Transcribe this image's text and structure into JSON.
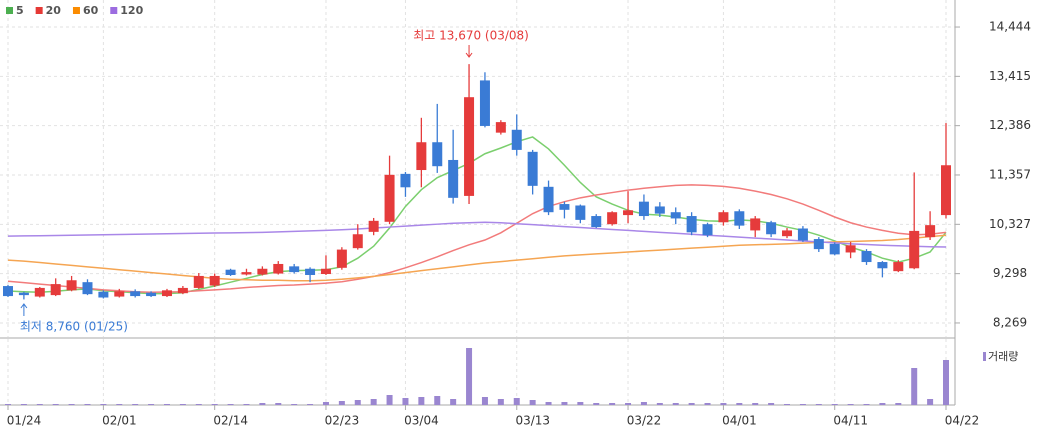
{
  "chart_data": [
    {
      "type": "candlestick",
      "categories": [
        "01/24",
        null,
        null,
        null,
        null,
        null,
        "02/01",
        null,
        null,
        null,
        null,
        null,
        null,
        "02/14",
        null,
        null,
        null,
        null,
        null,
        null,
        "02/23",
        null,
        null,
        null,
        null,
        "03/04",
        null,
        null,
        null,
        null,
        null,
        null,
        "03/13",
        null,
        null,
        null,
        null,
        null,
        null,
        "03/22",
        null,
        null,
        null,
        null,
        null,
        "04/01",
        null,
        null,
        null,
        null,
        null,
        null,
        "04/11",
        null,
        null,
        null,
        null,
        null,
        null,
        "04/22"
      ],
      "open": [
        9039,
        8900,
        8820,
        8850,
        8950,
        9120,
        8920,
        8820,
        8930,
        8900,
        8830,
        8890,
        9000,
        9050,
        9380,
        9280,
        9280,
        9300,
        9450,
        9400,
        9290,
        9420,
        9830,
        10170,
        10380,
        11380,
        11460,
        12040,
        11670,
        10920,
        13330,
        12240,
        12300,
        11840,
        11110,
        10750,
        10720,
        10500,
        10330,
        10520,
        10800,
        10700,
        10580,
        10500,
        10330,
        10370,
        10600,
        10200,
        10370,
        10080,
        10240,
        10020,
        9920,
        9740,
        9770,
        9540,
        9350,
        9410,
        10060,
        10520
      ],
      "high": [
        9060,
        8920,
        9020,
        9200,
        9250,
        9180,
        8950,
        8980,
        8970,
        8930,
        8980,
        9040,
        9310,
        9300,
        9400,
        9400,
        9450,
        9560,
        9500,
        9430,
        9680,
        9850,
        10330,
        10460,
        11760,
        11420,
        12550,
        12840,
        12300,
        13670,
        13500,
        12500,
        12620,
        11880,
        11240,
        10800,
        10740,
        10540,
        10600,
        11020,
        10950,
        10790,
        10680,
        10580,
        10360,
        10620,
        10640,
        10500,
        10400,
        10250,
        10290,
        10060,
        9950,
        9960,
        9810,
        9560,
        9580,
        11410,
        10600,
        12440
      ],
      "low": [
        8810,
        8760,
        8800,
        8830,
        8930,
        8850,
        8780,
        8800,
        8800,
        8810,
        8810,
        8870,
        8980,
        9020,
        9250,
        9260,
        9260,
        9280,
        9300,
        9120,
        9270,
        9380,
        9800,
        10100,
        10330,
        10900,
        11100,
        11400,
        10760,
        10750,
        12350,
        12200,
        11760,
        10950,
        10520,
        10450,
        10350,
        10250,
        10300,
        10350,
        10420,
        10480,
        10330,
        10100,
        10060,
        10300,
        10230,
        10060,
        10060,
        10040,
        9960,
        9750,
        9680,
        9620,
        9480,
        9220,
        9330,
        9390,
        10000,
        10450
      ],
      "close": [
        8830,
        8850,
        9000,
        9080,
        9160,
        8870,
        8800,
        8930,
        8830,
        8830,
        8950,
        9000,
        9250,
        9250,
        9270,
        9330,
        9400,
        9500,
        9330,
        9270,
        9400,
        9800,
        10120,
        10400,
        11360,
        11100,
        12040,
        11540,
        10880,
        12980,
        12380,
        12460,
        11880,
        11130,
        10580,
        10630,
        10420,
        10270,
        10580,
        10620,
        10500,
        10550,
        10450,
        10160,
        10100,
        10580,
        10300,
        10450,
        10120,
        10200,
        9990,
        9810,
        9700,
        9890,
        9540,
        9410,
        9540,
        10190,
        10310,
        11560
      ],
      "up_color": "#e53b3b",
      "down_color": "#3a7bd5",
      "series": [
        {
          "name": "5",
          "color": "#4caf50",
          "line_color": "#7bcf6e",
          "values": [
            8935,
            8920,
            8910,
            8930,
            8960,
            8980,
            8940,
            8920,
            8900,
            8880,
            8880,
            8900,
            8970,
            9040,
            9120,
            9200,
            9280,
            9340,
            9360,
            9370,
            9380,
            9440,
            9620,
            9870,
            10250,
            10700,
            11050,
            11300,
            11450,
            11600,
            11800,
            11920,
            12050,
            12150,
            11900,
            11560,
            11200,
            10900,
            10750,
            10620,
            10540,
            10520,
            10480,
            10430,
            10400,
            10390,
            10420,
            10400,
            10350,
            10270,
            10200,
            10100,
            9980,
            9850,
            9750,
            9620,
            9540,
            9620,
            9750,
            10160
          ]
        },
        {
          "name": "20",
          "color": "#e53935",
          "line_color": "#f27b7b",
          "values": [
            9140,
            9110,
            9080,
            9050,
            9020,
            8990,
            8960,
            8940,
            8920,
            8910,
            8915,
            8920,
            8940,
            8960,
            8980,
            9010,
            9030,
            9050,
            9060,
            9080,
            9100,
            9130,
            9180,
            9240,
            9320,
            9420,
            9530,
            9650,
            9780,
            9900,
            10000,
            10150,
            10350,
            10550,
            10700,
            10800,
            10880,
            10940,
            10990,
            11040,
            11080,
            11110,
            11140,
            11150,
            11140,
            11120,
            11080,
            11020,
            10950,
            10860,
            10750,
            10620,
            10480,
            10360,
            10270,
            10200,
            10140,
            10110,
            10120,
            10160
          ]
        },
        {
          "name": "60",
          "color": "#fb8c00",
          "line_color": "#f5a552",
          "values": [
            9580,
            9560,
            9530,
            9500,
            9470,
            9440,
            9410,
            9380,
            9350,
            9320,
            9290,
            9260,
            9230,
            9200,
            9180,
            9170,
            9160,
            9160,
            9150,
            9150,
            9160,
            9180,
            9210,
            9240,
            9280,
            9320,
            9360,
            9400,
            9440,
            9480,
            9520,
            9550,
            9580,
            9610,
            9640,
            9670,
            9690,
            9710,
            9730,
            9750,
            9770,
            9790,
            9810,
            9830,
            9850,
            9870,
            9890,
            9900,
            9910,
            9920,
            9935,
            9950,
            9960,
            9970,
            9980,
            9990,
            10010,
            10040,
            10070,
            10100
          ]
        },
        {
          "name": "120",
          "color": "#9c6ce0",
          "line_color": "#a987e8",
          "values": [
            10080,
            10085,
            10090,
            10095,
            10100,
            10105,
            10110,
            10115,
            10120,
            10125,
            10130,
            10135,
            10140,
            10145,
            10150,
            10155,
            10160,
            10170,
            10180,
            10190,
            10200,
            10215,
            10230,
            10250,
            10270,
            10290,
            10310,
            10330,
            10350,
            10360,
            10370,
            10360,
            10340,
            10320,
            10300,
            10280,
            10260,
            10240,
            10220,
            10200,
            10180,
            10160,
            10140,
            10120,
            10100,
            10080,
            10060,
            10040,
            10020,
            10000,
            9980,
            9960,
            9940,
            9920,
            9905,
            9890,
            9880,
            9870,
            9860,
            9855
          ]
        }
      ],
      "ylim": [
        7976,
        15008
      ],
      "yticks": [
        {
          "value": 8269,
          "label": "8,269"
        },
        {
          "value": 9298,
          "label": "9,298"
        },
        {
          "value": 10327,
          "label": "10,327"
        },
        {
          "value": 11357,
          "label": "11,357"
        },
        {
          "value": 12386,
          "label": "12,386"
        },
        {
          "value": 13415,
          "label": "13,415"
        },
        {
          "value": 14444,
          "label": "14,444"
        }
      ],
      "grid": true,
      "annotations": [
        {
          "text": "최고 13,670 (03/08)",
          "color": "#e53b3b"
        },
        {
          "text": "최저 8,760 (01/25)",
          "color": "#3a7bd5"
        }
      ]
    },
    {
      "type": "bar",
      "name": "거래량",
      "color": "#9a86d0",
      "values": [
        1,
        1,
        1,
        1,
        1,
        1,
        1,
        1,
        1,
        1,
        1,
        1,
        1,
        1,
        1,
        1,
        2,
        2,
        1,
        1,
        3,
        4,
        5,
        6,
        10,
        7,
        8,
        9,
        6,
        57,
        8,
        6,
        7,
        5,
        3,
        3,
        3,
        2,
        2,
        2,
        3,
        2,
        2,
        2,
        2,
        2,
        2,
        2,
        2,
        1,
        1,
        1,
        1,
        1,
        1,
        2,
        2,
        37,
        6,
        45
      ],
      "ylim": [
        0,
        60
      ]
    }
  ]
}
